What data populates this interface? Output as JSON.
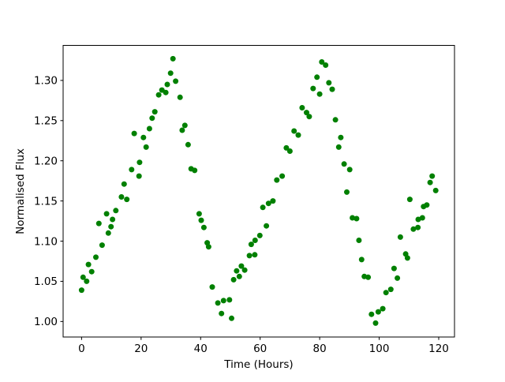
{
  "chart_data": {
    "type": "scatter",
    "title": "",
    "xlabel": "Time (Hours)",
    "ylabel": "Normalised Flux",
    "legend": null,
    "grid": false,
    "marker": {
      "shape": "circle",
      "color": "#008000",
      "radius_px": 3.5
    },
    "xlim": [
      -6.2,
      125.3
    ],
    "ylim": [
      0.9805,
      1.3435
    ],
    "xticks": [
      0,
      20,
      40,
      60,
      80,
      100,
      120
    ],
    "yticks": [
      1.0,
      1.05,
      1.1,
      1.15,
      1.2,
      1.25,
      1.3
    ],
    "points": [
      [
        0.0,
        1.039
      ],
      [
        0.5,
        1.055
      ],
      [
        1.7,
        1.05
      ],
      [
        2.3,
        1.071
      ],
      [
        3.4,
        1.062
      ],
      [
        4.8,
        1.08
      ],
      [
        5.8,
        1.122
      ],
      [
        6.9,
        1.095
      ],
      [
        8.4,
        1.134
      ],
      [
        9.0,
        1.11
      ],
      [
        9.9,
        1.118
      ],
      [
        10.4,
        1.127
      ],
      [
        11.5,
        1.138
      ],
      [
        13.4,
        1.155
      ],
      [
        14.3,
        1.171
      ],
      [
        15.2,
        1.152
      ],
      [
        16.8,
        1.189
      ],
      [
        17.7,
        1.234
      ],
      [
        19.3,
        1.181
      ],
      [
        19.5,
        1.198
      ],
      [
        20.8,
        1.229
      ],
      [
        21.7,
        1.217
      ],
      [
        22.8,
        1.24
      ],
      [
        23.7,
        1.253
      ],
      [
        24.6,
        1.261
      ],
      [
        25.9,
        1.282
      ],
      [
        27.0,
        1.288
      ],
      [
        28.3,
        1.285
      ],
      [
        28.8,
        1.295
      ],
      [
        29.9,
        1.309
      ],
      [
        30.7,
        1.327
      ],
      [
        31.6,
        1.299
      ],
      [
        33.1,
        1.279
      ],
      [
        33.8,
        1.238
      ],
      [
        34.7,
        1.244
      ],
      [
        35.8,
        1.22
      ],
      [
        36.8,
        1.19
      ],
      [
        38.0,
        1.188
      ],
      [
        39.5,
        1.134
      ],
      [
        40.2,
        1.126
      ],
      [
        41.1,
        1.117
      ],
      [
        42.2,
        1.098
      ],
      [
        42.7,
        1.093
      ],
      [
        43.9,
        1.043
      ],
      [
        45.8,
        1.023
      ],
      [
        47.0,
        1.01
      ],
      [
        47.7,
        1.026
      ],
      [
        49.7,
        1.027
      ],
      [
        50.4,
        1.004
      ],
      [
        51.1,
        1.052
      ],
      [
        52.1,
        1.063
      ],
      [
        53.0,
        1.056
      ],
      [
        53.7,
        1.069
      ],
      [
        54.8,
        1.064
      ],
      [
        56.4,
        1.082
      ],
      [
        57.0,
        1.096
      ],
      [
        58.2,
        1.083
      ],
      [
        58.3,
        1.101
      ],
      [
        59.9,
        1.107
      ],
      [
        60.9,
        1.142
      ],
      [
        62.1,
        1.119
      ],
      [
        62.8,
        1.147
      ],
      [
        64.3,
        1.15
      ],
      [
        65.6,
        1.176
      ],
      [
        67.4,
        1.181
      ],
      [
        68.8,
        1.216
      ],
      [
        70.0,
        1.212
      ],
      [
        71.4,
        1.237
      ],
      [
        72.8,
        1.232
      ],
      [
        74.1,
        1.266
      ],
      [
        75.6,
        1.26
      ],
      [
        76.5,
        1.255
      ],
      [
        77.8,
        1.29
      ],
      [
        79.1,
        1.304
      ],
      [
        80.0,
        1.283
      ],
      [
        80.7,
        1.323
      ],
      [
        82.0,
        1.319
      ],
      [
        83.1,
        1.297
      ],
      [
        84.2,
        1.289
      ],
      [
        85.3,
        1.251
      ],
      [
        86.4,
        1.217
      ],
      [
        87.1,
        1.229
      ],
      [
        88.2,
        1.196
      ],
      [
        89.1,
        1.161
      ],
      [
        90.1,
        1.189
      ],
      [
        91.0,
        1.129
      ],
      [
        92.4,
        1.128
      ],
      [
        93.2,
        1.101
      ],
      [
        94.1,
        1.077
      ],
      [
        95.0,
        1.056
      ],
      [
        96.3,
        1.055
      ],
      [
        97.4,
        1.009
      ],
      [
        98.8,
        0.998
      ],
      [
        99.7,
        1.012
      ],
      [
        101.2,
        1.016
      ],
      [
        102.3,
        1.036
      ],
      [
        103.9,
        1.04
      ],
      [
        105.0,
        1.066
      ],
      [
        106.1,
        1.054
      ],
      [
        107.1,
        1.105
      ],
      [
        108.9,
        1.084
      ],
      [
        109.5,
        1.079
      ],
      [
        110.3,
        1.152
      ],
      [
        111.5,
        1.115
      ],
      [
        113.0,
        1.117
      ],
      [
        113.1,
        1.127
      ],
      [
        114.5,
        1.129
      ],
      [
        114.9,
        1.143
      ],
      [
        116.0,
        1.145
      ],
      [
        117.1,
        1.173
      ],
      [
        117.8,
        1.181
      ],
      [
        119.0,
        1.163
      ]
    ]
  }
}
